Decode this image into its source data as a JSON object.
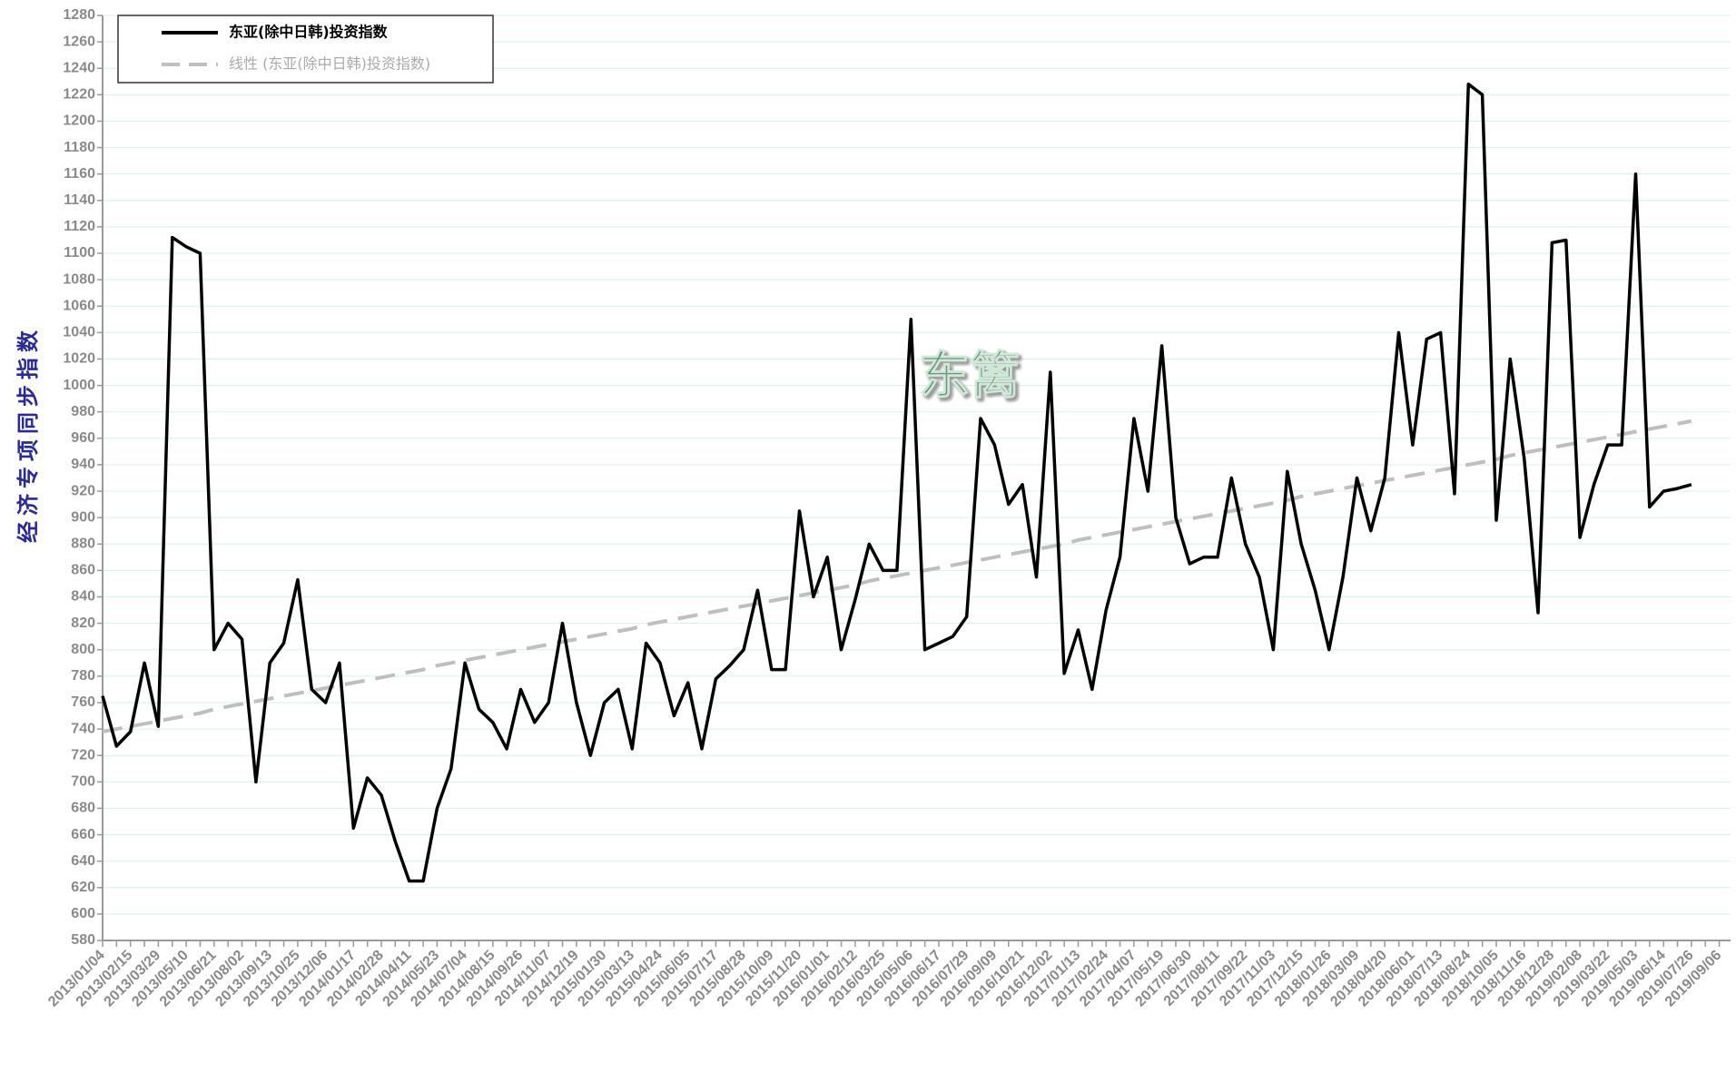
{
  "chart_data": {
    "type": "line",
    "y_label": "经济专项同步指数",
    "watermark": "东篱",
    "categories": [
      "2013/01/04",
      null,
      "2013/02/15",
      null,
      "2013/03/29",
      null,
      "2013/05/10",
      null,
      "2013/06/21",
      null,
      "2013/08/02",
      null,
      "2013/09/13",
      null,
      "2013/10/25",
      null,
      "2013/12/06",
      null,
      "2014/01/17",
      null,
      "2014/02/28",
      null,
      "2014/04/11",
      null,
      "2014/05/23",
      null,
      "2014/07/04",
      null,
      "2014/08/15",
      null,
      "2014/09/26",
      null,
      "2014/11/07",
      null,
      "2014/12/19",
      null,
      "2015/01/30",
      null,
      "2015/03/13",
      null,
      "2015/04/24",
      null,
      "2015/06/05",
      null,
      "2015/07/17",
      null,
      "2015/08/28",
      null,
      "2015/10/09",
      null,
      "2015/11/20",
      null,
      "2016/01/01",
      null,
      "2016/02/12",
      null,
      "2016/03/25",
      null,
      "2016/05/06",
      null,
      "2016/06/17",
      null,
      "2016/07/29",
      null,
      "2016/09/09",
      null,
      "2016/10/21",
      null,
      "2016/12/02",
      null,
      "2017/01/13",
      null,
      "2017/02/24",
      null,
      "2017/04/07",
      null,
      "2017/05/19",
      null,
      "2017/06/30",
      null,
      "2017/08/11",
      null,
      "2017/09/22",
      null,
      "2017/11/03",
      null,
      "2017/12/15",
      null,
      "2018/01/26",
      null,
      "2018/03/09",
      null,
      "2018/04/20",
      null,
      "2018/06/01",
      null,
      "2018/07/13",
      null,
      "2018/08/24",
      null,
      "2018/10/05",
      null,
      "2018/11/16",
      null,
      "2018/12/28",
      null,
      "2019/02/08",
      null,
      "2019/03/22",
      null,
      "2019/05/03",
      null,
      "2019/06/14",
      null,
      "2019/07/26",
      null,
      "2019/09/06"
    ],
    "series": [
      {
        "name": "东亚(除中日韩)投资指数",
        "color": "#000000",
        "dash": false,
        "values": [
          765,
          727,
          738,
          790,
          742,
          1112,
          1105,
          1100,
          800,
          820,
          808,
          700,
          790,
          805,
          853,
          770,
          760,
          790,
          665,
          703,
          690,
          655,
          625,
          625,
          680,
          710,
          790,
          755,
          745,
          725,
          770,
          745,
          760,
          820,
          760,
          720,
          760,
          770,
          725,
          805,
          790,
          750,
          775,
          725,
          778,
          788,
          800,
          845,
          785,
          785,
          905,
          840,
          870,
          800,
          838,
          880,
          860,
          860,
          1050,
          800,
          805,
          810,
          825,
          975,
          955,
          910,
          925,
          855,
          1010,
          782,
          815,
          770,
          830,
          870,
          975,
          920,
          1030,
          900,
          865,
          870,
          870,
          930,
          880,
          855,
          800,
          935,
          880,
          845,
          800,
          855,
          930,
          890,
          930,
          1040,
          955,
          1035,
          1040,
          918,
          1228,
          1220,
          898,
          1020,
          945,
          828,
          1108,
          1110,
          885,
          925,
          955,
          955,
          1160,
          908,
          920,
          922,
          925,
          null,
          null
        ]
      },
      {
        "name": "线性 (东亚(除中日韩)投资指数)",
        "color": "#bfbfbf",
        "dash": true,
        "values": [
          738,
          740,
          742,
          744,
          746,
          748,
          750,
          752,
          755,
          757,
          759,
          761,
          763,
          765,
          767,
          769,
          771,
          773,
          775,
          777,
          779,
          781,
          783,
          785,
          788,
          790,
          792,
          794,
          796,
          798,
          800,
          802,
          804,
          806,
          808,
          810,
          812,
          814,
          816,
          819,
          821,
          823,
          825,
          827,
          829,
          831,
          833,
          835,
          837,
          839,
          841,
          843,
          845,
          847,
          849,
          852,
          854,
          856,
          858,
          860,
          862,
          864,
          866,
          868,
          870,
          872,
          874,
          876,
          878,
          880,
          883,
          885,
          887,
          889,
          891,
          893,
          895,
          897,
          899,
          901,
          903,
          905,
          907,
          909,
          911,
          913,
          916,
          918,
          920,
          922,
          924,
          926,
          928,
          930,
          932,
          934,
          936,
          938,
          940,
          942,
          944,
          947,
          949,
          951,
          953,
          955,
          957,
          959,
          961,
          963,
          965,
          967,
          969,
          971,
          973,
          null,
          null
        ]
      }
    ],
    "ylim": [
      580,
      1280
    ],
    "yticks": [
      580,
      600,
      620,
      640,
      660,
      680,
      700,
      720,
      740,
      760,
      780,
      800,
      820,
      840,
      860,
      880,
      900,
      920,
      940,
      960,
      980,
      1000,
      1020,
      1040,
      1060,
      1080,
      1100,
      1120,
      1140,
      1160,
      1180,
      1200,
      1220,
      1240,
      1260,
      1280
    ],
    "grid": true,
    "legend": "top-left"
  }
}
